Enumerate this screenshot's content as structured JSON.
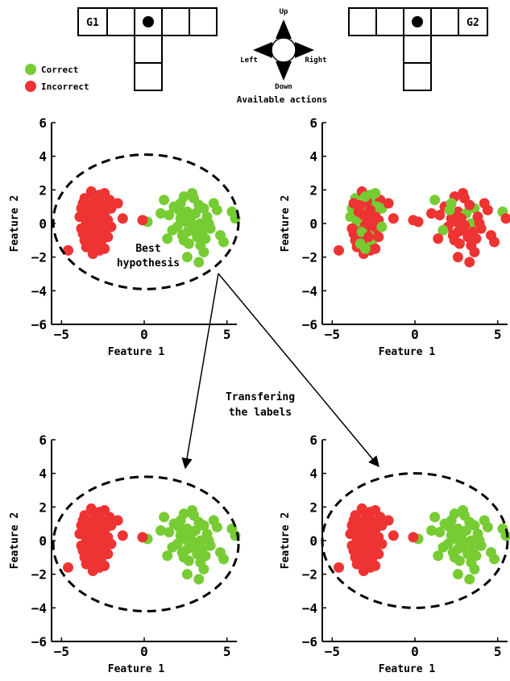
{
  "colors": {
    "correct": "#77cc33",
    "incorrect": "#ee3333"
  },
  "gridworld_left": {
    "goal_label": "G1"
  },
  "gridworld_right": {
    "goal_label": "G2"
  },
  "actions": {
    "up": "Up",
    "down": "Down",
    "left": "Left",
    "right": "Right",
    "caption": "Available actions"
  },
  "legend": {
    "correct": "Correct",
    "incorrect": "Incorrect"
  },
  "annotations": {
    "best_hypothesis_1": "Best",
    "best_hypothesis_2": "hypothesis",
    "transfer_1": "Transfering",
    "transfer_2": "the labels"
  },
  "axes": {
    "xlabel": "Feature 1",
    "ylabel": "Feature 2",
    "xticks": [
      -5,
      0,
      5
    ],
    "yticks": [
      -6,
      -4,
      -2,
      0,
      2,
      4,
      6
    ]
  },
  "chart_data": [
    {
      "type": "scatter",
      "panel": "top-left",
      "xlabel": "Feature 1",
      "ylabel": "Feature 2",
      "xlim": [
        -5.6,
        5.6
      ],
      "ylim": [
        -6,
        6
      ],
      "labeling": "by-cluster",
      "left_cluster": "Incorrect",
      "right_cluster": "Correct",
      "annotation": "Best hypothesis",
      "hypothesis_ellipse": {
        "center": [
          0.1,
          0.1
        ],
        "rx": 5.6,
        "ry": 4.0
      }
    },
    {
      "type": "scatter",
      "panel": "top-right",
      "xlabel": "Feature 1",
      "ylabel": "Feature 2",
      "xlim": [
        -5.6,
        5.6
      ],
      "ylim": [
        -6,
        6
      ],
      "labeling": "mixed"
    },
    {
      "type": "scatter",
      "panel": "bottom-left",
      "xlabel": "Feature 1",
      "ylabel": "Feature 2",
      "xlim": [
        -5.6,
        5.6
      ],
      "ylim": [
        -6,
        6
      ],
      "labeling": "by-cluster",
      "left_cluster": "Incorrect",
      "right_cluster": "Correct",
      "hypothesis_ellipse": {
        "center": [
          0.1,
          -0.2
        ],
        "rx": 5.6,
        "ry": 4.0
      }
    },
    {
      "type": "scatter",
      "panel": "bottom-right",
      "xlabel": "Feature 1",
      "ylabel": "Feature 2",
      "xlim": [
        -5.6,
        5.6
      ],
      "ylim": [
        -6,
        6
      ],
      "labeling": "by-cluster",
      "left_cluster": "Incorrect",
      "right_cluster": "Correct",
      "hypothesis_ellipse": {
        "center": [
          0.0,
          0.0
        ],
        "rx": 5.6,
        "ry": 4.0
      }
    }
  ],
  "points": [
    [
      -3.0,
      0.8
    ],
    [
      -2.6,
      1.2
    ],
    [
      -3.3,
      0.3
    ],
    [
      -2.8,
      -0.4
    ],
    [
      -3.6,
      1.5
    ],
    [
      -2.4,
      0.6
    ],
    [
      -3.1,
      -0.9
    ],
    [
      -2.7,
      1.7
    ],
    [
      -3.4,
      -0.2
    ],
    [
      -2.2,
      0.2
    ],
    [
      -3.8,
      0.9
    ],
    [
      -2.9,
      -1.3
    ],
    [
      -3.2,
      1.9
    ],
    [
      -2.5,
      -0.7
    ],
    [
      -3.7,
      -0.6
    ],
    [
      -2.1,
      1.4
    ],
    [
      -3.5,
      0.1
    ],
    [
      -2.8,
      0.4
    ],
    [
      -3.0,
      -0.1
    ],
    [
      -2.6,
      -1.1
    ],
    [
      -3.3,
      1.1
    ],
    [
      -2.3,
      -0.3
    ],
    [
      -3.9,
      0.4
    ],
    [
      -2.7,
      -1.6
    ],
    [
      -3.1,
      0.5
    ],
    [
      -2.4,
      1.8
    ],
    [
      -3.6,
      -1.0
    ],
    [
      -2.9,
      1.3
    ],
    [
      -3.2,
      -0.5
    ],
    [
      -2.5,
      0.0
    ],
    [
      -3.4,
      0.7
    ],
    [
      -2.0,
      0.9
    ],
    [
      -3.7,
      1.2
    ],
    [
      -2.8,
      -0.8
    ],
    [
      -3.0,
      1.6
    ],
    [
      -2.6,
      0.2
    ],
    [
      -3.5,
      -1.4
    ],
    [
      -2.3,
      1.0
    ],
    [
      -3.1,
      -1.8
    ],
    [
      -2.7,
      0.8
    ],
    [
      -3.3,
      -1.2
    ],
    [
      -2.2,
      -0.8
    ],
    [
      -3.8,
      -0.3
    ],
    [
      -2.9,
      0.0
    ],
    [
      -2.0,
      -0.2
    ],
    [
      -1.6,
      1.2
    ],
    [
      -1.3,
      0.3
    ],
    [
      -2.4,
      -1.5
    ],
    [
      -4.6,
      -1.6
    ],
    [
      -3.0,
      -1.5
    ],
    [
      2.6,
      0.7
    ],
    [
      3.0,
      1.5
    ],
    [
      2.2,
      0.3
    ],
    [
      3.4,
      0.0
    ],
    [
      1.8,
      1.0
    ],
    [
      2.9,
      -0.4
    ],
    [
      3.6,
      0.9
    ],
    [
      2.4,
      1.6
    ],
    [
      3.2,
      -0.8
    ],
    [
      2.0,
      -0.2
    ],
    [
      3.8,
      0.4
    ],
    [
      2.7,
      -1.2
    ],
    [
      3.1,
      0.6
    ],
    [
      1.5,
      0.5
    ],
    [
      4.0,
      -0.3
    ],
    [
      2.5,
      0.1
    ],
    [
      3.3,
      1.1
    ],
    [
      2.1,
      0.8
    ],
    [
      3.7,
      -0.9
    ],
    [
      2.8,
      0.3
    ],
    [
      1.2,
      1.4
    ],
    [
      3.5,
      -0.5
    ],
    [
      2.3,
      -0.7
    ],
    [
      4.2,
      1.2
    ],
    [
      2.9,
      1.8
    ],
    [
      1.7,
      -0.4
    ],
    [
      3.0,
      -0.1
    ],
    [
      2.6,
      -0.5
    ],
    [
      3.9,
      0.0
    ],
    [
      2.2,
      1.2
    ],
    [
      1.0,
      0.6
    ],
    [
      3.4,
      -1.3
    ],
    [
      4.4,
      0.8
    ],
    [
      2.4,
      -1.0
    ],
    [
      5.3,
      0.7
    ],
    [
      5.5,
      0.3
    ],
    [
      4.6,
      -0.7
    ],
    [
      4.8,
      -1.1
    ],
    [
      3.6,
      -1.7
    ],
    [
      2.6,
      -2.0
    ],
    [
      3.3,
      -2.3
    ],
    [
      1.4,
      -0.9
    ],
    [
      0.2,
      0.1
    ],
    [
      -0.1,
      0.2
    ]
  ],
  "top_right_mixed": [
    0,
    1,
    2,
    4,
    7,
    10,
    13,
    16,
    19,
    22,
    25,
    28,
    31,
    34,
    37,
    40,
    44,
    49,
    53,
    56,
    62,
    67,
    70,
    75,
    79,
    84
  ]
}
